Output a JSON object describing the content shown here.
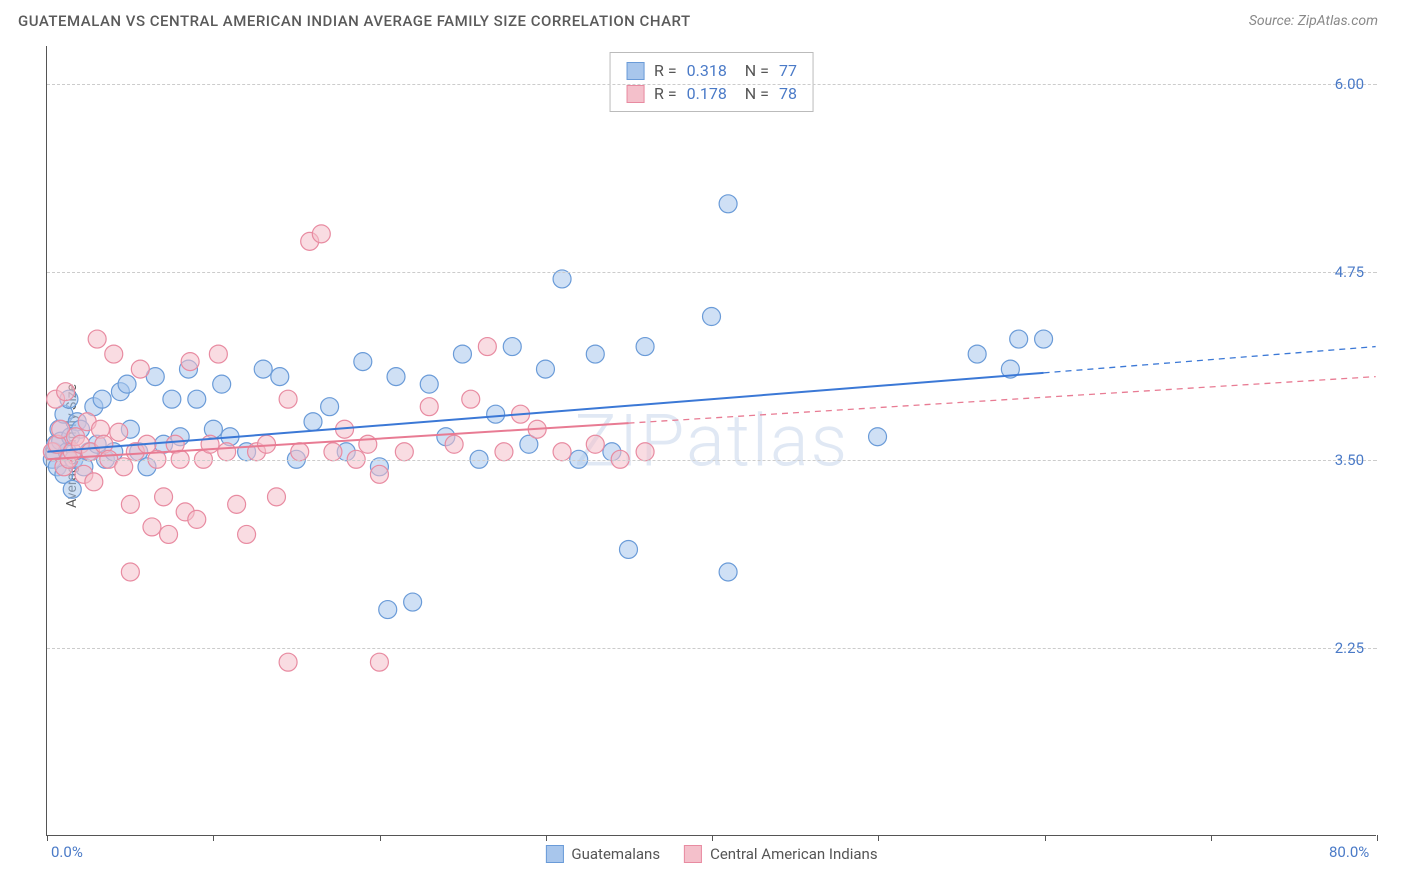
{
  "title": "GUATEMALAN VS CENTRAL AMERICAN INDIAN AVERAGE FAMILY SIZE CORRELATION CHART",
  "source": "Source: ZipAtlas.com",
  "watermark": "ZIPatlas",
  "ylabel": "Average Family Size",
  "chart": {
    "type": "scatter",
    "xmin": 0.0,
    "xmax": 80.0,
    "ymin": 1.0,
    "ymax": 6.25,
    "ygrid": [
      2.25,
      3.5,
      4.75,
      6.0
    ],
    "xticks_minor_step": 10.0,
    "xtick_labels": [
      {
        "pos": 0.0,
        "text": "0.0%"
      },
      {
        "pos": 80.0,
        "text": "80.0%"
      }
    ],
    "background_color": "#ffffff",
    "grid_color": "#cccccc",
    "marker_radius": 9,
    "marker_opacity": 0.55,
    "line_width": 2,
    "series": [
      {
        "name": "Guatemalans",
        "color_fill": "#a8c6ec",
        "color_stroke": "#6a9bd8",
        "line_color": "#3b78d6",
        "regression": {
          "x1": 0.0,
          "y1": 3.55,
          "x2": 80.0,
          "y2": 4.25,
          "solid_until_x": 60.0
        },
        "points": [
          [
            0.3,
            3.5
          ],
          [
            0.4,
            3.55
          ],
          [
            0.5,
            3.6
          ],
          [
            0.6,
            3.45
          ],
          [
            0.7,
            3.7
          ],
          [
            0.8,
            3.62
          ],
          [
            1.0,
            3.4
          ],
          [
            1.0,
            3.8
          ],
          [
            1.2,
            3.55
          ],
          [
            1.3,
            3.9
          ],
          [
            1.4,
            3.65
          ],
          [
            1.5,
            3.3
          ],
          [
            1.6,
            3.5
          ],
          [
            1.8,
            3.75
          ],
          [
            2.0,
            3.7
          ],
          [
            2.2,
            3.45
          ],
          [
            2.5,
            3.55
          ],
          [
            2.8,
            3.85
          ],
          [
            3.0,
            3.6
          ],
          [
            3.3,
            3.9
          ],
          [
            3.5,
            3.5
          ],
          [
            4.0,
            3.55
          ],
          [
            4.4,
            3.95
          ],
          [
            4.8,
            4.0
          ],
          [
            5.0,
            3.7
          ],
          [
            5.5,
            3.55
          ],
          [
            6.0,
            3.45
          ],
          [
            6.5,
            4.05
          ],
          [
            7.0,
            3.6
          ],
          [
            7.5,
            3.9
          ],
          [
            8.0,
            3.65
          ],
          [
            8.5,
            4.1
          ],
          [
            9.0,
            3.9
          ],
          [
            10.0,
            3.7
          ],
          [
            10.5,
            4.0
          ],
          [
            11.0,
            3.65
          ],
          [
            12.0,
            3.55
          ],
          [
            13.0,
            4.1
          ],
          [
            14.0,
            4.05
          ],
          [
            15.0,
            3.5
          ],
          [
            16.0,
            3.75
          ],
          [
            17.0,
            3.85
          ],
          [
            18.0,
            3.55
          ],
          [
            19.0,
            4.15
          ],
          [
            20.0,
            3.45
          ],
          [
            21.0,
            4.05
          ],
          [
            20.5,
            2.5
          ],
          [
            22.0,
            2.55
          ],
          [
            23.0,
            4.0
          ],
          [
            24.0,
            3.65
          ],
          [
            25.0,
            4.2
          ],
          [
            26.0,
            3.5
          ],
          [
            27.0,
            3.8
          ],
          [
            28.0,
            4.25
          ],
          [
            29.0,
            3.6
          ],
          [
            30.0,
            4.1
          ],
          [
            31.0,
            4.7
          ],
          [
            32.0,
            3.5
          ],
          [
            33.0,
            4.2
          ],
          [
            34.0,
            3.55
          ],
          [
            35.0,
            2.9
          ],
          [
            36.0,
            4.25
          ],
          [
            40.0,
            4.45
          ],
          [
            41.0,
            2.75
          ],
          [
            41.0,
            5.2
          ],
          [
            50.0,
            3.65
          ],
          [
            56.0,
            4.2
          ],
          [
            58.0,
            4.1
          ],
          [
            58.5,
            4.3
          ],
          [
            60.0,
            4.3
          ]
        ]
      },
      {
        "name": "Central American Indians",
        "color_fill": "#f4c0cb",
        "color_stroke": "#e88ba1",
        "line_color": "#e87b93",
        "regression": {
          "x1": 0.0,
          "y1": 3.5,
          "x2": 80.0,
          "y2": 4.05,
          "solid_until_x": 35.0
        },
        "points": [
          [
            0.3,
            3.55
          ],
          [
            0.5,
            3.9
          ],
          [
            0.6,
            3.6
          ],
          [
            0.8,
            3.7
          ],
          [
            1.0,
            3.45
          ],
          [
            1.1,
            3.95
          ],
          [
            1.3,
            3.5
          ],
          [
            1.5,
            3.55
          ],
          [
            1.7,
            3.65
          ],
          [
            2.0,
            3.6
          ],
          [
            2.2,
            3.4
          ],
          [
            2.4,
            3.75
          ],
          [
            2.6,
            3.55
          ],
          [
            2.8,
            3.35
          ],
          [
            3.0,
            4.3
          ],
          [
            3.2,
            3.7
          ],
          [
            3.4,
            3.6
          ],
          [
            3.7,
            3.5
          ],
          [
            4.0,
            4.2
          ],
          [
            4.3,
            3.68
          ],
          [
            4.6,
            3.45
          ],
          [
            5.0,
            3.2
          ],
          [
            5.0,
            2.75
          ],
          [
            5.3,
            3.55
          ],
          [
            5.6,
            4.1
          ],
          [
            6.0,
            3.6
          ],
          [
            6.3,
            3.05
          ],
          [
            6.6,
            3.5
          ],
          [
            7.0,
            3.25
          ],
          [
            7.3,
            3.0
          ],
          [
            7.7,
            3.6
          ],
          [
            8.0,
            3.5
          ],
          [
            8.3,
            3.15
          ],
          [
            8.6,
            4.15
          ],
          [
            9.0,
            3.1
          ],
          [
            9.4,
            3.5
          ],
          [
            9.8,
            3.6
          ],
          [
            10.3,
            4.2
          ],
          [
            10.8,
            3.55
          ],
          [
            11.4,
            3.2
          ],
          [
            12.0,
            3.0
          ],
          [
            12.6,
            3.55
          ],
          [
            13.2,
            3.6
          ],
          [
            13.8,
            3.25
          ],
          [
            14.5,
            3.9
          ],
          [
            14.5,
            2.15
          ],
          [
            15.2,
            3.55
          ],
          [
            15.8,
            4.95
          ],
          [
            16.5,
            5.0
          ],
          [
            17.2,
            3.55
          ],
          [
            17.9,
            3.7
          ],
          [
            18.6,
            3.5
          ],
          [
            19.3,
            3.6
          ],
          [
            20.0,
            3.4
          ],
          [
            20.0,
            2.15
          ],
          [
            21.5,
            3.55
          ],
          [
            23.0,
            3.85
          ],
          [
            24.5,
            3.6
          ],
          [
            25.5,
            3.9
          ],
          [
            26.5,
            4.25
          ],
          [
            27.5,
            3.55
          ],
          [
            28.5,
            3.8
          ],
          [
            29.5,
            3.7
          ],
          [
            31.0,
            3.55
          ],
          [
            33.0,
            3.6
          ],
          [
            34.5,
            3.5
          ],
          [
            36.0,
            3.55
          ]
        ]
      }
    ]
  },
  "stats": [
    {
      "swatch_fill": "#a8c6ec",
      "swatch_stroke": "#6a9bd8",
      "r": "0.318",
      "n": "77"
    },
    {
      "swatch_fill": "#f4c0cb",
      "swatch_stroke": "#e88ba1",
      "r": "0.178",
      "n": "78"
    }
  ],
  "legend": [
    {
      "swatch_fill": "#a8c6ec",
      "swatch_stroke": "#6a9bd8",
      "label": "Guatemalans"
    },
    {
      "swatch_fill": "#f4c0cb",
      "swatch_stroke": "#e88ba1",
      "label": "Central American Indians"
    }
  ]
}
